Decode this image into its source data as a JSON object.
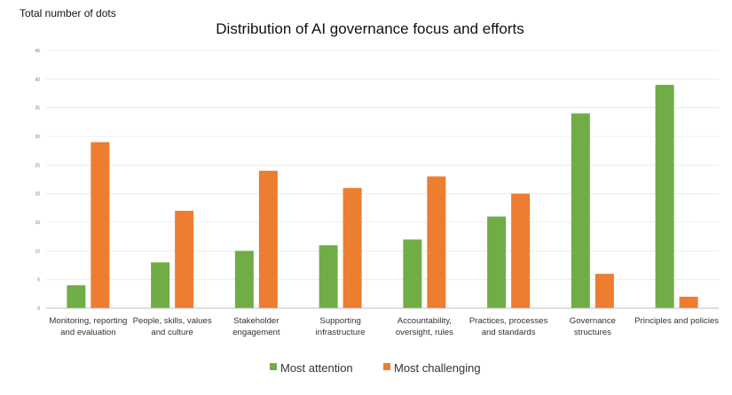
{
  "chart_data": {
    "type": "bar",
    "top_note": "Total number of dots",
    "title": "Distribution of AI governance focus and efforts",
    "xlabel": "",
    "ylabel": "",
    "ylim": [
      0,
      45
    ],
    "yticks": [
      0,
      5,
      10,
      15,
      20,
      25,
      30,
      35,
      40,
      45
    ],
    "grid": true,
    "legend_position": "bottom",
    "categories": [
      [
        "Monitoring, reporting",
        "and evaluation"
      ],
      [
        "People, skills, values",
        "and culture"
      ],
      [
        "Stakeholder",
        "engagement"
      ],
      [
        "Supporting",
        "infrastructure"
      ],
      [
        "Accountability,",
        "oversight, rules"
      ],
      [
        "Practices, processes",
        "and standards"
      ],
      [
        "Governance",
        "structures"
      ],
      [
        "Principles and policies"
      ]
    ],
    "series": [
      {
        "name": "Most attention",
        "color": "#70ad47",
        "values": [
          4,
          8,
          10,
          11,
          12,
          16,
          34,
          39
        ]
      },
      {
        "name": "Most challenging",
        "color": "#ed7d31",
        "values": [
          29,
          17,
          24,
          21,
          23,
          20,
          6,
          2
        ]
      }
    ]
  }
}
